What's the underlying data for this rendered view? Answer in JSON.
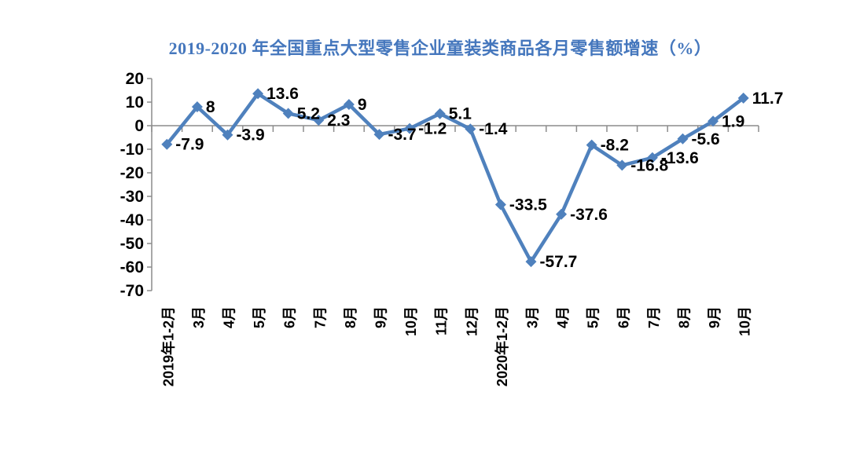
{
  "title": {
    "text": "2019-2020 年全国重点大型零售企业童装类商品各月零售额增速（%）",
    "color": "#4577BD"
  },
  "chart_data": {
    "type": "line",
    "title": "2019-2020 年全国重点大型零售企业童装类商品各月零售额增速（%）",
    "categories": [
      "2019年1-2月",
      "3月",
      "4月",
      "5月",
      "6月",
      "7月",
      "8月",
      "9月",
      "10月",
      "11月",
      "12月",
      "2020年1-2月",
      "3月",
      "4月",
      "5月",
      "6月",
      "7月",
      "8月",
      "9月",
      "10月"
    ],
    "values": [
      -7.9,
      8,
      -3.9,
      13.6,
      5.2,
      2.3,
      9,
      -3.7,
      -1.2,
      5.1,
      -1.4,
      -33.5,
      -57.7,
      -37.6,
      -8.2,
      -16.8,
      -13.6,
      -5.6,
      1.9,
      11.7
    ],
    "point_labels": [
      "-7.9",
      "8",
      "-3.9",
      "13.6",
      "5.2",
      "2.3",
      "9",
      "-3.7",
      "-1.2",
      "5.1",
      "-1.4",
      "-33.5",
      "-57.7",
      "-37.6",
      "-8.2",
      "-16.8",
      "-13.6",
      "-5.6",
      "1.9",
      "11.7"
    ],
    "xlabel": "",
    "ylabel": "",
    "ylim": [
      -70,
      20
    ],
    "yticks": [
      20,
      10,
      0,
      -10,
      -20,
      -30,
      -40,
      -50,
      -60,
      -70
    ],
    "grid": false,
    "legend": "none",
    "marker": "diamond",
    "line_color": "#4F81BD",
    "axis_color": "#8C8C8C",
    "label_color": "#000000"
  }
}
